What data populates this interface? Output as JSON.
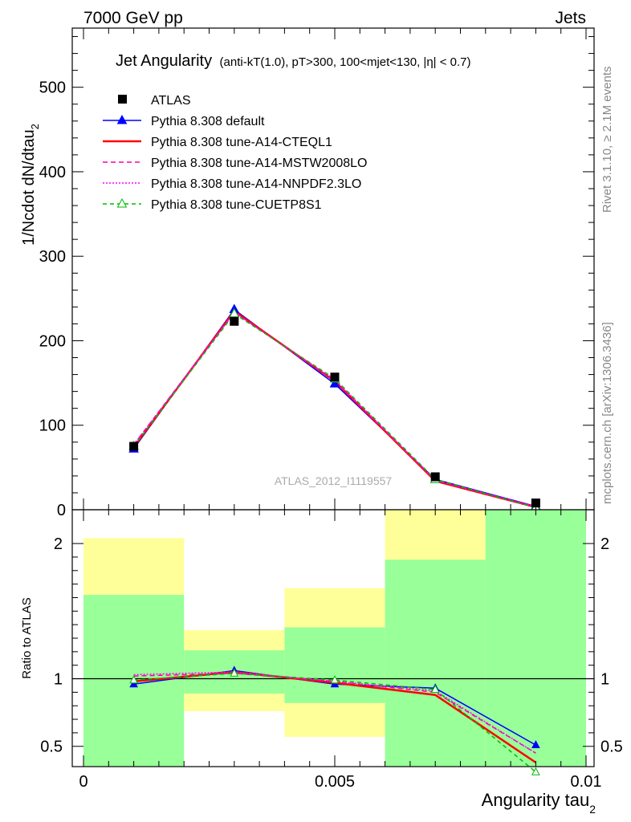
{
  "header": {
    "left": "7000 GeV pp",
    "right": "Jets"
  },
  "plot_title": {
    "main": "Jet Angularity",
    "detail": "(anti-kT(1.0), pT>300, 100<mjet<130, |η| < 0.7)"
  },
  "side_labels": {
    "rivet": "Rivet 3.1.10, ≥ 2.1M events",
    "mcplots": "mcplots.cern.ch [arXiv:1306.3436]"
  },
  "watermark": "ATLAS_2012_I1119557",
  "chart_data": [
    {
      "type": "line",
      "panel": "main",
      "ylabel": "1/Ncdot dN/dtau_2",
      "xlim": [
        0,
        0.01
      ],
      "ylim": [
        0,
        570
      ],
      "yticks": [
        0,
        100,
        200,
        300,
        400,
        500
      ],
      "legend_position": "top-left",
      "x": [
        0.001,
        0.003,
        0.005,
        0.007,
        0.009
      ],
      "series": [
        {
          "name": "ATLAS",
          "style": "data",
          "color": "#000000",
          "values": [
            75,
            223,
            157,
            39,
            8
          ]
        },
        {
          "name": "Pythia 8.308 default",
          "style": "solid-triangle",
          "color": "#0000ff",
          "values": [
            72,
            237,
            149,
            36,
            4
          ]
        },
        {
          "name": "Pythia 8.308 tune-A14-CTEQL1",
          "style": "solid-thick",
          "color": "#ff0000",
          "values": [
            74,
            235,
            152,
            34,
            3
          ]
        },
        {
          "name": "Pythia 8.308 tune-A14-MSTW2008LO",
          "style": "dashed",
          "color": "#ff00aa",
          "values": [
            77,
            234,
            152,
            35,
            3.5
          ]
        },
        {
          "name": "Pythia 8.308 tune-A14-NNPDF2.3LO",
          "style": "dotted",
          "color": "#ff00ff",
          "values": [
            77,
            233,
            154,
            35,
            3.5
          ]
        },
        {
          "name": "Pythia 8.308 tune-CUETP8S1",
          "style": "dashed-open-triangle",
          "color": "#00bb00",
          "values": [
            75,
            232,
            155,
            36,
            2.5
          ]
        }
      ]
    },
    {
      "type": "line",
      "panel": "ratio",
      "xlabel": "Angularity tau_2",
      "ylabel": "Ratio to ATLAS",
      "xlim": [
        0,
        0.01
      ],
      "ylim": [
        0.35,
        2.25
      ],
      "yticks": [
        0.5,
        1,
        2
      ],
      "xticks": [
        0,
        0.005,
        0.01
      ],
      "x": [
        0.001,
        0.003,
        0.005,
        0.007,
        0.009
      ],
      "bands": [
        {
          "x0": 0.0,
          "x1": 0.002,
          "yellow": [
            0.35,
            2.04
          ],
          "green": [
            0.35,
            1.62
          ]
        },
        {
          "x0": 0.002,
          "x1": 0.004,
          "yellow": [
            0.76,
            1.36
          ],
          "green": [
            0.89,
            1.21
          ]
        },
        {
          "x0": 0.004,
          "x1": 0.006,
          "yellow": [
            0.57,
            1.67
          ],
          "green": [
            0.82,
            1.38
          ]
        },
        {
          "x0": 0.006,
          "x1": 0.008,
          "yellow": [
            0.35,
            2.25
          ],
          "green": [
            0.35,
            1.88
          ]
        },
        {
          "x0": 0.008,
          "x1": 0.01,
          "yellow": [
            0.35,
            2.25
          ],
          "green": [
            0.35,
            2.25
          ]
        }
      ],
      "series": [
        {
          "name": "Pythia 8.308 default",
          "color": "#0000ff",
          "values": [
            0.96,
            1.06,
            0.96,
            0.93,
            0.51
          ]
        },
        {
          "name": "Pythia 8.308 tune-A14-CTEQL1",
          "color": "#ff0000",
          "values": [
            0.98,
            1.05,
            0.97,
            0.88,
            0.38
          ]
        },
        {
          "name": "Pythia 8.308 tune-A14-MSTW2008LO",
          "color": "#ff00aa",
          "values": [
            1.02,
            1.04,
            0.98,
            0.9,
            0.45
          ]
        },
        {
          "name": "Pythia 8.308 tune-A14-NNPDF2.3LO",
          "color": "#ff00ff",
          "values": [
            1.03,
            1.05,
            0.98,
            0.91,
            0.45
          ]
        },
        {
          "name": "Pythia 8.308 tune-CUETP8S1",
          "color": "#00bb00",
          "values": [
            0.99,
            1.04,
            0.99,
            0.92,
            0.31
          ]
        }
      ]
    }
  ]
}
